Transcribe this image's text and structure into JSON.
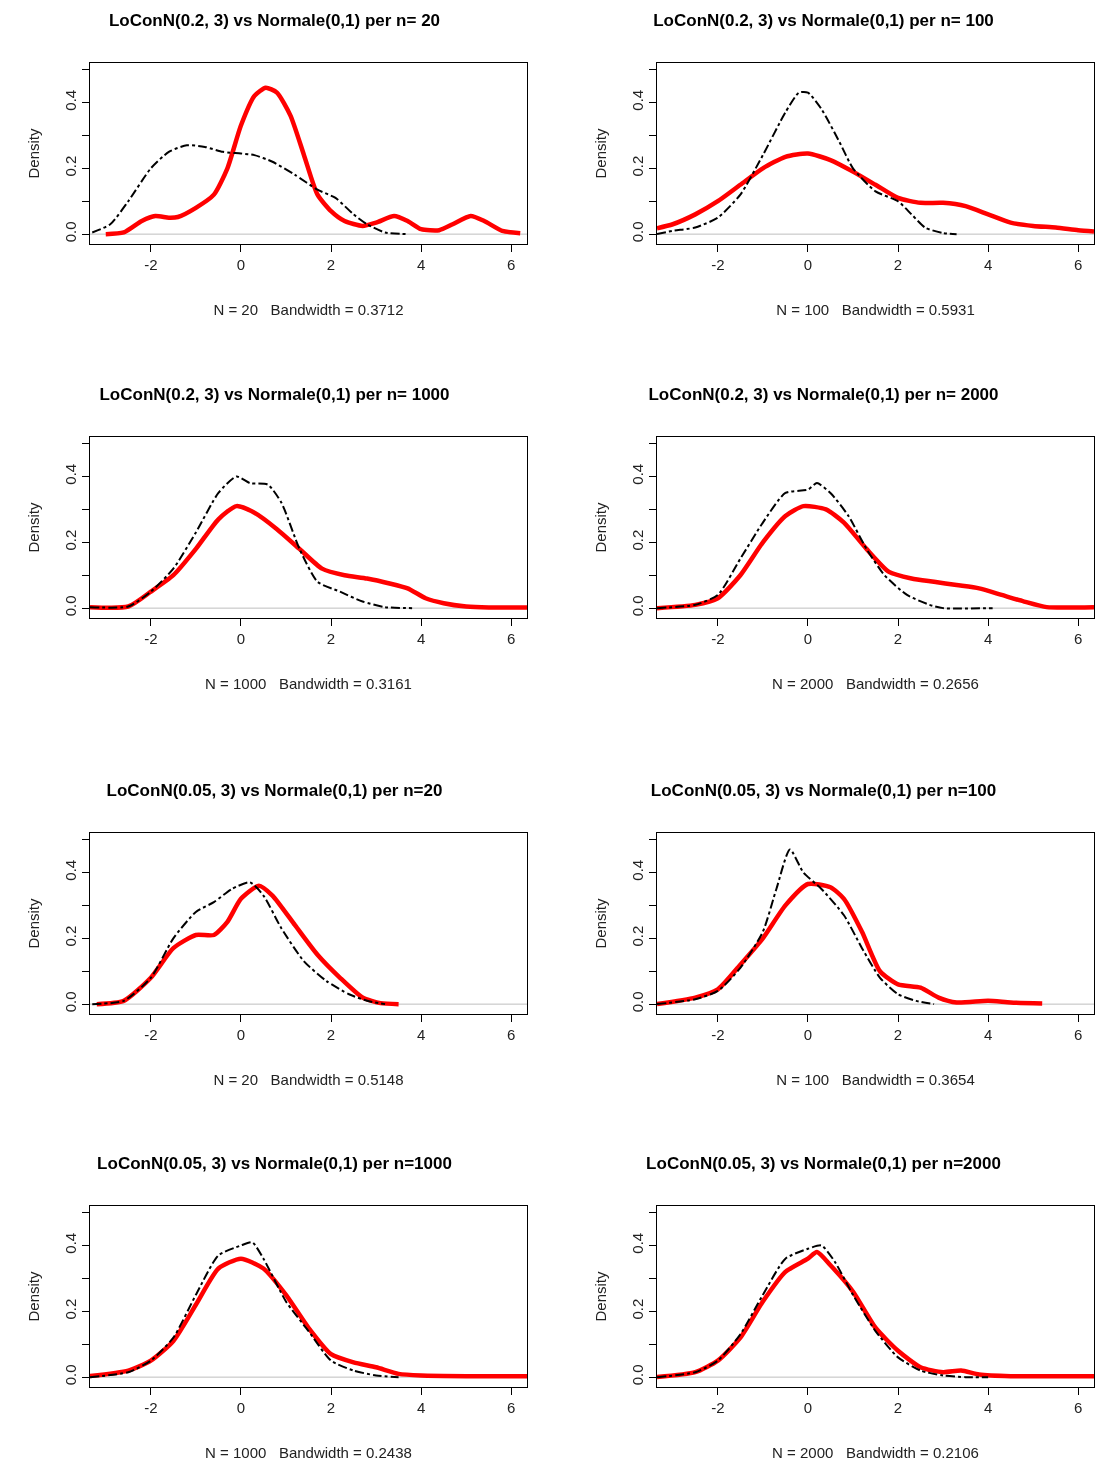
{
  "chart_data": [
    {
      "type": "line",
      "title": "LoConN(0.2, 3) vs Normale(0,1) per n= 20",
      "xlabel": "N = 20   Bandwidth = 0.3712",
      "ylabel": "Density",
      "xlim": [
        -3.35,
        6.35
      ],
      "ylim": [
        -0.03,
        0.52
      ],
      "xticks": [
        -2,
        0,
        2,
        4,
        6
      ],
      "yticks": [
        {
          "value": 0,
          "label": "0.0"
        },
        {
          "value": 0.1,
          "label": null
        },
        {
          "value": 0.2,
          "label": "0.2"
        },
        {
          "value": 0.3,
          "label": null
        },
        {
          "value": 0.4,
          "label": "0.4"
        },
        {
          "value": 0.5,
          "label": null
        }
      ],
      "ref_lines": [
        {
          "axis": "y",
          "value": 0,
          "color": "#bebebe"
        }
      ],
      "series": [
        {
          "color": "#ff0000",
          "line_style": "solid",
          "x": [
            -3.0,
            -2.6,
            -2.2,
            -1.9,
            -1.6,
            -1.4,
            -1.0,
            -0.6,
            -0.3,
            0,
            0.3,
            0.55,
            0.8,
            1.1,
            1.4,
            1.7,
            2.0,
            2.3,
            2.7,
            3.0,
            3.4,
            3.7,
            4.0,
            4.4,
            4.7,
            5.1,
            5.4,
            5.8,
            6.2
          ],
          "values": [
            0.0,
            0.005,
            0.04,
            0.055,
            0.05,
            0.052,
            0.08,
            0.12,
            0.2,
            0.33,
            0.42,
            0.445,
            0.43,
            0.36,
            0.24,
            0.12,
            0.07,
            0.04,
            0.025,
            0.035,
            0.055,
            0.04,
            0.015,
            0.012,
            0.03,
            0.055,
            0.04,
            0.01,
            0.003
          ]
        },
        {
          "color": "#000000",
          "line_style": "dashed",
          "x": [
            -3.3,
            -2.9,
            -2.5,
            -2.0,
            -1.6,
            -1.2,
            -0.8,
            -0.4,
            0,
            0.3,
            0.7,
            1.2,
            1.7,
            2.1,
            2.5,
            2.8,
            3.2,
            3.7
          ],
          "values": [
            0.005,
            0.03,
            0.1,
            0.2,
            0.25,
            0.27,
            0.265,
            0.25,
            0.245,
            0.24,
            0.22,
            0.18,
            0.135,
            0.11,
            0.06,
            0.03,
            0.005,
            0.0
          ]
        }
      ]
    },
    {
      "type": "line",
      "title": "LoConN(0.2, 3) vs Normale(0,1) per n= 100",
      "xlabel": "N = 100   Bandwidth = 0.5931",
      "ylabel": "Density",
      "xlim": [
        -3.35,
        6.35
      ],
      "ylim": [
        -0.03,
        0.52
      ],
      "xticks": [
        -2,
        0,
        2,
        4,
        6
      ],
      "yticks": [
        {
          "value": 0,
          "label": "0.0"
        },
        {
          "value": 0.1,
          "label": null
        },
        {
          "value": 0.2,
          "label": "0.2"
        },
        {
          "value": 0.3,
          "label": null
        },
        {
          "value": 0.4,
          "label": "0.4"
        },
        {
          "value": 0.5,
          "label": null
        }
      ],
      "ref_lines": [
        {
          "axis": "y",
          "value": 0,
          "color": "#bebebe"
        }
      ],
      "series": [
        {
          "color": "#ff0000",
          "line_style": "solid",
          "x": [
            -3.35,
            -3,
            -2.5,
            -2,
            -1.5,
            -1,
            -0.5,
            0,
            0.5,
            1,
            1.5,
            2,
            2.5,
            3,
            3.5,
            4,
            4.5,
            5,
            5.5,
            6,
            6.35
          ],
          "values": [
            0.018,
            0.03,
            0.06,
            0.1,
            0.15,
            0.2,
            0.235,
            0.245,
            0.225,
            0.19,
            0.15,
            0.11,
            0.095,
            0.095,
            0.085,
            0.06,
            0.035,
            0.025,
            0.02,
            0.012,
            0.008
          ]
        },
        {
          "color": "#000000",
          "line_style": "dashed",
          "x": [
            -3.35,
            -3,
            -2.5,
            -2,
            -1.5,
            -1,
            -0.5,
            -0.2,
            0,
            0.3,
            0.7,
            1,
            1.5,
            2,
            2.3,
            2.6,
            3,
            3.3
          ],
          "values": [
            0.0,
            0.01,
            0.02,
            0.05,
            0.12,
            0.24,
            0.37,
            0.43,
            0.43,
            0.38,
            0.28,
            0.2,
            0.13,
            0.1,
            0.06,
            0.02,
            0.003,
            0.0
          ]
        }
      ]
    },
    {
      "type": "line",
      "title": "LoConN(0.2, 3) vs Normale(0,1) per n= 1000",
      "xlabel": "N = 1000   Bandwidth = 0.3161",
      "ylabel": "Density",
      "xlim": [
        -3.35,
        6.35
      ],
      "ylim": [
        -0.03,
        0.52
      ],
      "xticks": [
        -2,
        0,
        2,
        4,
        6
      ],
      "yticks": [
        {
          "value": 0,
          "label": "0.0"
        },
        {
          "value": 0.1,
          "label": null
        },
        {
          "value": 0.2,
          "label": "0.2"
        },
        {
          "value": 0.3,
          "label": null
        },
        {
          "value": 0.4,
          "label": "0.4"
        },
        {
          "value": 0.5,
          "label": null
        }
      ],
      "ref_lines": [
        {
          "axis": "y",
          "value": 0,
          "color": "#bebebe"
        }
      ],
      "series": [
        {
          "color": "#ff0000",
          "line_style": "solid",
          "x": [
            -3.35,
            -2.5,
            -2,
            -1.5,
            -1,
            -0.5,
            -0.1,
            0.3,
            0.8,
            1.3,
            1.8,
            2.3,
            2.8,
            3.3,
            3.7,
            4.1,
            4.5,
            5,
            5.5,
            6.35
          ],
          "values": [
            0.003,
            0.005,
            0.05,
            0.1,
            0.18,
            0.27,
            0.31,
            0.29,
            0.24,
            0.18,
            0.12,
            0.1,
            0.09,
            0.075,
            0.06,
            0.03,
            0.015,
            0.005,
            0.002,
            0.002
          ]
        },
        {
          "color": "#000000",
          "line_style": "dashed",
          "x": [
            -3.35,
            -2.5,
            -2,
            -1.5,
            -1,
            -0.5,
            -0.1,
            0.2,
            0.6,
            0.9,
            1.3,
            1.7,
            2.2,
            2.7,
            3.2,
            3.8
          ],
          "values": [
            0.003,
            0.005,
            0.05,
            0.12,
            0.23,
            0.35,
            0.4,
            0.38,
            0.375,
            0.32,
            0.18,
            0.08,
            0.05,
            0.02,
            0.003,
            0.0
          ]
        }
      ]
    },
    {
      "type": "line",
      "title": "LoConN(0.2, 3) vs Normale(0,1) per n= 2000",
      "xlabel": "N = 2000   Bandwidth = 0.2656",
      "ylabel": "Density",
      "xlim": [
        -3.35,
        6.35
      ],
      "ylim": [
        -0.03,
        0.52
      ],
      "xticks": [
        -2,
        0,
        2,
        4,
        6
      ],
      "yticks": [
        {
          "value": 0,
          "label": "0.0"
        },
        {
          "value": 0.1,
          "label": null
        },
        {
          "value": 0.2,
          "label": "0.2"
        },
        {
          "value": 0.3,
          "label": null
        },
        {
          "value": 0.4,
          "label": "0.4"
        },
        {
          "value": 0.5,
          "label": null
        }
      ],
      "ref_lines": [
        {
          "axis": "y",
          "value": 0,
          "color": "#bebebe"
        }
      ],
      "series": [
        {
          "color": "#ff0000",
          "line_style": "solid",
          "x": [
            -3.35,
            -2.5,
            -2,
            -1.5,
            -1,
            -0.5,
            -0.1,
            0.4,
            0.8,
            1.3,
            1.8,
            2.3,
            2.8,
            3.3,
            3.8,
            4.3,
            4.8,
            5.3,
            6.35
          ],
          "values": [
            0.0,
            0.01,
            0.03,
            0.1,
            0.2,
            0.28,
            0.31,
            0.3,
            0.26,
            0.18,
            0.11,
            0.09,
            0.08,
            0.07,
            0.06,
            0.04,
            0.02,
            0.003,
            0.003
          ]
        },
        {
          "color": "#000000",
          "line_style": "dashed",
          "x": [
            -3.35,
            -2.5,
            -2,
            -1.5,
            -1,
            -0.5,
            0,
            0.2,
            0.5,
            0.9,
            1.3,
            1.7,
            2.2,
            2.7,
            3,
            4.1
          ],
          "values": [
            0.0,
            0.01,
            0.04,
            0.15,
            0.26,
            0.35,
            0.36,
            0.38,
            0.35,
            0.28,
            0.18,
            0.1,
            0.04,
            0.01,
            0.0,
            0.0
          ]
        }
      ]
    },
    {
      "type": "line",
      "title": "LoConN(0.05, 3) vs Normale(0,1) per n=20",
      "xlabel": "N = 20   Bandwidth = 0.5148",
      "ylabel": "Density",
      "xlim": [
        -3.35,
        6.35
      ],
      "ylim": [
        -0.03,
        0.52
      ],
      "xticks": [
        -2,
        0,
        2,
        4,
        6
      ],
      "yticks": [
        {
          "value": 0,
          "label": "0.0"
        },
        {
          "value": 0.1,
          "label": null
        },
        {
          "value": 0.2,
          "label": "0.2"
        },
        {
          "value": 0.3,
          "label": null
        },
        {
          "value": 0.4,
          "label": "0.4"
        },
        {
          "value": 0.5,
          "label": null
        }
      ],
      "ref_lines": [
        {
          "axis": "y",
          "value": 0,
          "color": "#bebebe"
        }
      ],
      "series": [
        {
          "color": "#ff0000",
          "line_style": "solid",
          "x": [
            -3.2,
            -2.6,
            -2,
            -1.5,
            -1,
            -0.6,
            -0.3,
            0,
            0.4,
            0.7,
            1.2,
            1.7,
            2.2,
            2.7,
            3.1,
            3.5
          ],
          "values": [
            0.0,
            0.01,
            0.08,
            0.17,
            0.21,
            0.21,
            0.25,
            0.32,
            0.36,
            0.33,
            0.24,
            0.15,
            0.08,
            0.02,
            0.003,
            0.0
          ]
        },
        {
          "color": "#000000",
          "line_style": "dashed",
          "x": [
            -3.3,
            -2.6,
            -2,
            -1.5,
            -1,
            -0.6,
            -0.2,
            0.2,
            0.5,
            0.9,
            1.4,
            1.9,
            2.4,
            2.8,
            3.2
          ],
          "values": [
            0.0,
            0.01,
            0.08,
            0.2,
            0.28,
            0.31,
            0.35,
            0.37,
            0.33,
            0.23,
            0.13,
            0.07,
            0.03,
            0.01,
            0.0
          ]
        }
      ]
    },
    {
      "type": "line",
      "title": "LoConN(0.05, 3) vs Normale(0,1) per n=100",
      "xlabel": "N = 100   Bandwidth = 0.3654",
      "ylabel": "Density",
      "xlim": [
        -3.35,
        6.35
      ],
      "ylim": [
        -0.03,
        0.52
      ],
      "xticks": [
        -2,
        0,
        2,
        4,
        6
      ],
      "yticks": [
        {
          "value": 0,
          "label": "0.0"
        },
        {
          "value": 0.1,
          "label": null
        },
        {
          "value": 0.2,
          "label": "0.2"
        },
        {
          "value": 0.3,
          "label": null
        },
        {
          "value": 0.4,
          "label": "0.4"
        },
        {
          "value": 0.5,
          "label": null
        }
      ],
      "ref_lines": [
        {
          "axis": "y",
          "value": 0,
          "color": "#bebebe"
        }
      ],
      "series": [
        {
          "color": "#ff0000",
          "line_style": "solid",
          "x": [
            -3.35,
            -2.5,
            -2,
            -1.5,
            -1,
            -0.5,
            0,
            0.5,
            0.8,
            1.2,
            1.6,
            2,
            2.5,
            2.9,
            3.3,
            4,
            4.5,
            5.2
          ],
          "values": [
            0.0,
            0.02,
            0.045,
            0.12,
            0.2,
            0.3,
            0.365,
            0.355,
            0.32,
            0.22,
            0.1,
            0.06,
            0.05,
            0.02,
            0.005,
            0.01,
            0.005,
            0.002
          ]
        },
        {
          "color": "#000000",
          "line_style": "dashed",
          "x": [
            -3.35,
            -2.5,
            -2,
            -1.5,
            -1,
            -0.7,
            -0.4,
            -0.1,
            0.3,
            0.8,
            1.2,
            1.6,
            2,
            2.4,
            2.8
          ],
          "values": [
            0.0,
            0.015,
            0.04,
            0.11,
            0.22,
            0.35,
            0.47,
            0.4,
            0.35,
            0.27,
            0.17,
            0.08,
            0.03,
            0.01,
            0.0
          ]
        }
      ]
    },
    {
      "type": "line",
      "title": "LoConN(0.05, 3) vs Normale(0,1) per n=1000",
      "xlabel": "N = 1000   Bandwidth = 0.2438",
      "ylabel": "Density",
      "xlim": [
        -3.35,
        6.35
      ],
      "ylim": [
        -0.03,
        0.52
      ],
      "xticks": [
        -2,
        0,
        2,
        4,
        6
      ],
      "yticks": [
        {
          "value": 0,
          "label": "0.0"
        },
        {
          "value": 0.1,
          "label": null
        },
        {
          "value": 0.2,
          "label": "0.2"
        },
        {
          "value": 0.3,
          "label": null
        },
        {
          "value": 0.4,
          "label": "0.4"
        },
        {
          "value": 0.5,
          "label": null
        }
      ],
      "ref_lines": [
        {
          "axis": "y",
          "value": 0,
          "color": "#bebebe"
        }
      ],
      "series": [
        {
          "color": "#ff0000",
          "line_style": "solid",
          "x": [
            -3.35,
            -2.5,
            -2,
            -1.5,
            -1,
            -0.5,
            0,
            0.5,
            1,
            1.5,
            2,
            2.5,
            3,
            3.5,
            4,
            5,
            6.35
          ],
          "values": [
            0.003,
            0.02,
            0.05,
            0.11,
            0.22,
            0.33,
            0.36,
            0.33,
            0.25,
            0.15,
            0.07,
            0.045,
            0.03,
            0.01,
            0.005,
            0.003,
            0.003
          ]
        },
        {
          "color": "#000000",
          "line_style": "dashed",
          "x": [
            -3.35,
            -2.5,
            -2,
            -1.5,
            -1,
            -0.5,
            0,
            0.25,
            0.5,
            1,
            1.5,
            2,
            2.5,
            3,
            3.5
          ],
          "values": [
            0.0,
            0.015,
            0.05,
            0.12,
            0.25,
            0.37,
            0.4,
            0.41,
            0.36,
            0.23,
            0.14,
            0.05,
            0.02,
            0.005,
            0.0
          ]
        }
      ]
    },
    {
      "type": "line",
      "title": "LoConN(0.05, 3) vs Normale(0,1) per n=2000",
      "xlabel": "N = 2000   Bandwidth = 0.2106",
      "ylabel": "Density",
      "xlim": [
        -3.35,
        6.35
      ],
      "ylim": [
        -0.03,
        0.52
      ],
      "xticks": [
        -2,
        0,
        2,
        4,
        6
      ],
      "yticks": [
        {
          "value": 0,
          "label": "0.0"
        },
        {
          "value": 0.1,
          "label": null
        },
        {
          "value": 0.2,
          "label": "0.2"
        },
        {
          "value": 0.3,
          "label": null
        },
        {
          "value": 0.4,
          "label": "0.4"
        },
        {
          "value": 0.5,
          "label": null
        }
      ],
      "ref_lines": [
        {
          "axis": "y",
          "value": 0,
          "color": "#bebebe"
        }
      ],
      "series": [
        {
          "color": "#ff0000",
          "line_style": "solid",
          "x": [
            -3.35,
            -2.5,
            -2,
            -1.5,
            -1,
            -0.5,
            0,
            0.2,
            0.5,
            1,
            1.5,
            2,
            2.5,
            3,
            3.4,
            3.8,
            4.5,
            6.35
          ],
          "values": [
            0.0,
            0.015,
            0.05,
            0.12,
            0.23,
            0.32,
            0.36,
            0.38,
            0.34,
            0.26,
            0.15,
            0.08,
            0.03,
            0.015,
            0.02,
            0.008,
            0.003,
            0.003
          ]
        },
        {
          "color": "#000000",
          "line_style": "dashed",
          "x": [
            -3.35,
            -2.5,
            -2,
            -1.5,
            -1,
            -0.5,
            0,
            0.3,
            0.6,
            1,
            1.5,
            2,
            2.5,
            3,
            3.5,
            4
          ],
          "values": [
            0.0,
            0.015,
            0.05,
            0.13,
            0.25,
            0.36,
            0.39,
            0.4,
            0.35,
            0.25,
            0.14,
            0.06,
            0.02,
            0.005,
            0.0,
            0.0
          ]
        }
      ]
    }
  ]
}
